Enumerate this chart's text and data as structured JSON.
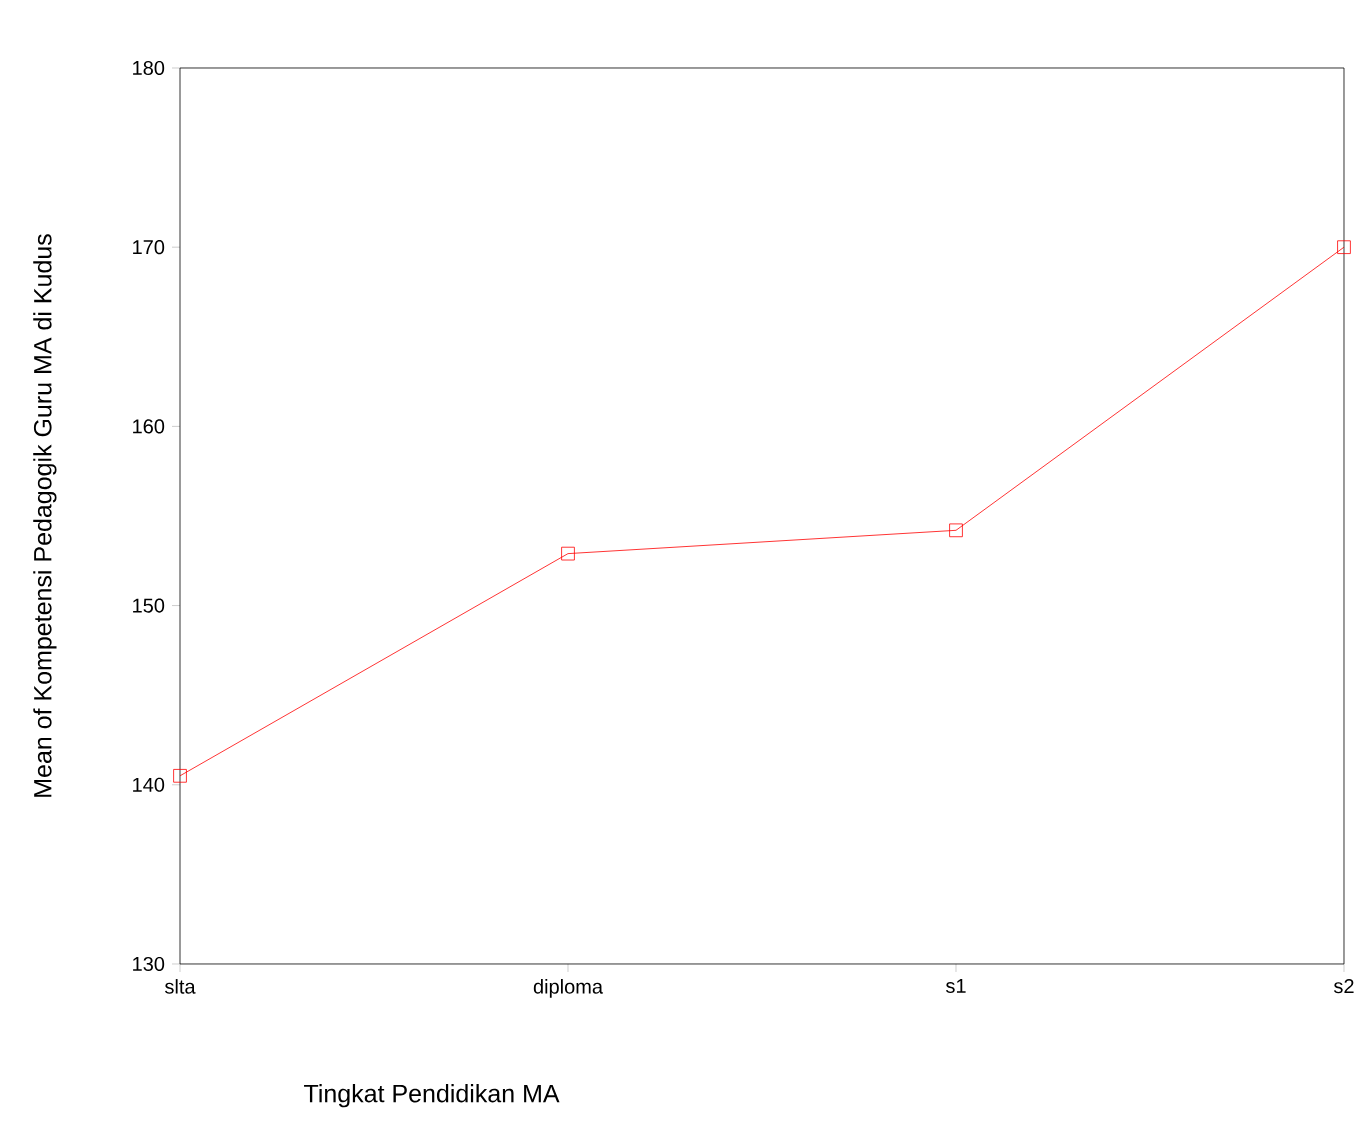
{
  "chart_data": {
    "type": "line",
    "xlabel": "Tingkat Pendidikan MA",
    "ylabel": "Mean of Kompetensi Pedagogik Guru MA di Kudus",
    "categories": [
      "slta",
      "diploma",
      "s1",
      "s2"
    ],
    "series": [
      {
        "color": "#ff0000",
        "values": [
          140.5,
          152.9,
          154.2,
          170.0
        ]
      }
    ],
    "ylim": [
      130,
      180
    ],
    "yticks": [
      130,
      140,
      150,
      160,
      170,
      180
    ],
    "marker": "square",
    "line_style": "solid",
    "grid": false
  }
}
